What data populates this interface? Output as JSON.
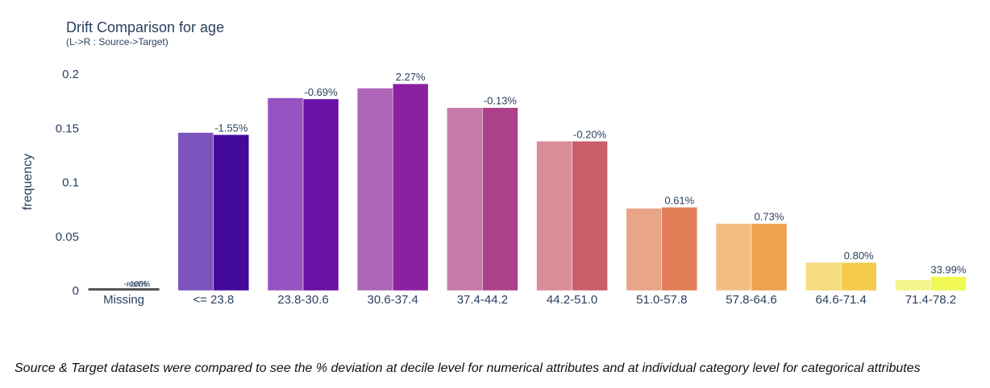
{
  "title": "Drift Comparison for age",
  "subtitle": "(L->R : Source->Target)",
  "footnote": "Source & Target datasets were compared to see the % deviation at decile level for numerical attributes and at individual category level for categorical attributes",
  "chart_data": {
    "type": "bar",
    "title": "Drift Comparison for age",
    "subtitle": "(L->R : Source->Target)",
    "xlabel": "",
    "ylabel": "frequency",
    "ylim": [
      0,
      0.2
    ],
    "yticks": [
      {
        "value": 0,
        "label": "0"
      },
      {
        "value": 0.05,
        "label": "0.05"
      },
      {
        "value": 0.1,
        "label": "0.1"
      },
      {
        "value": 0.15,
        "label": "0.15"
      },
      {
        "value": 0.2,
        "label": "0.2"
      }
    ],
    "grid": false,
    "categories": [
      "Missing",
      "<= 23.8",
      "23.8-30.6",
      "30.6-37.4",
      "37.4-44.2",
      "44.2-51.0",
      "51.0-57.8",
      "57.8-64.6",
      "64.6-71.4",
      "71.4-78.2"
    ],
    "series": [
      {
        "values": [
          0.002,
          0.146,
          0.178,
          0.187,
          0.169,
          0.138,
          0.076,
          0.062,
          0.026,
          0.01
        ]
      },
      {
        "values": [
          0.002,
          0.144,
          0.177,
          0.191,
          0.169,
          0.138,
          0.077,
          0.062,
          0.026,
          0.013
        ]
      }
    ],
    "source_colors": [
      "#555555",
      "#7b54be",
      "#9553c1",
      "#ae65b8",
      "#c57aa7",
      "#d98d96",
      "#e8a588",
      "#f2bd81",
      "#f6dc80",
      "#f3f58d"
    ],
    "target_colors": [
      "#555555",
      "#42099b",
      "#6a11a6",
      "#8b21a0",
      "#ac408a",
      "#cb5e6b",
      "#e17e57",
      "#eea24e",
      "#f5cb4e",
      "#f1f853"
    ],
    "data_labels": [
      "-nan%",
      "-1.55%",
      "-0.69%",
      "2.27%",
      "-0.13%",
      "-0.20%",
      "0.61%",
      "0.73%",
      "0.80%",
      "33.99%"
    ],
    "missing_overlay_label": "-100%"
  }
}
